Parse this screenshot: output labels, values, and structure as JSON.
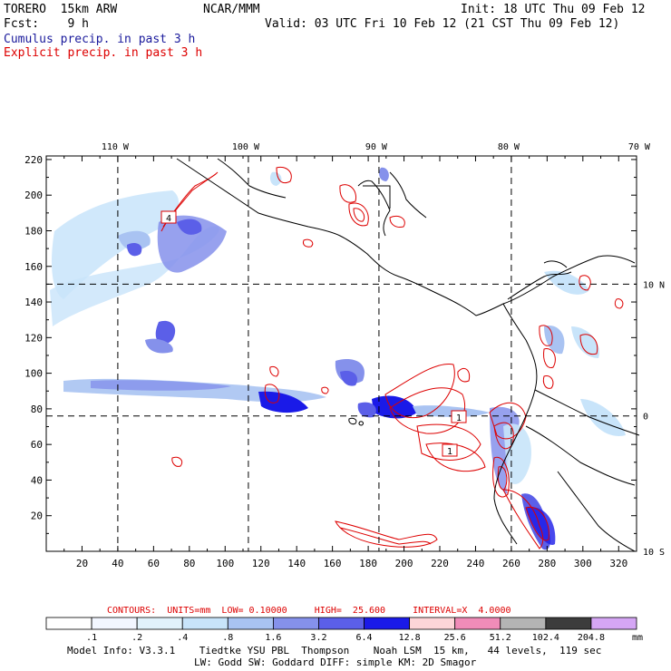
{
  "header": {
    "model": "TORERO  15km ARW",
    "org": "NCAR/MMM",
    "init": "Init: 18 UTC Thu 09 Feb 12",
    "fcst": "Fcst:    9 h",
    "valid": "Valid: 03 UTC Fri 10 Feb 12 (21 CST Thu 09 Feb 12)",
    "line1": "Cumulus precip. in past 3 h",
    "line2": "Explicit precip. in past 3 h",
    "line1_color": "#1a1a9c",
    "line2_color": "#dd0000"
  },
  "chart_data": {
    "type": "heatmap",
    "title": "Cumulus precip. in past 3 h (shaded) / Explicit precip. in past 3 h (red contours)",
    "x_ticks": [
      20,
      40,
      60,
      80,
      100,
      120,
      140,
      160,
      180,
      200,
      220,
      240,
      260,
      280,
      300,
      320
    ],
    "y_ticks": [
      20,
      40,
      60,
      80,
      100,
      120,
      140,
      160,
      180,
      200,
      220
    ],
    "xlim": [
      0,
      330
    ],
    "ylim": [
      0,
      222
    ],
    "lon_labels": [
      {
        "label": "110 W",
        "x": 40
      },
      {
        "label": "100 W",
        "x": 113
      },
      {
        "label": "90 W",
        "x": 186
      },
      {
        "label": "80 W",
        "x": 260
      },
      {
        "label": "70 W",
        "x": 333
      }
    ],
    "lat_labels": [
      {
        "label": "10 N",
        "y": 150
      },
      {
        "label": "0",
        "y": 76
      },
      {
        "label": "10 S",
        "y": 0
      }
    ],
    "contour_labels": [
      "4",
      "1",
      "1"
    ],
    "contours": {
      "units": "CONTOURS:  UNITS=mm  LOW= 0.10000     HIGH=  25.600     INTERVAL=X  4.0000"
    },
    "colorbar": {
      "units": "mm",
      "ticks": [
        ".1",
        ".2",
        ".4",
        ".8",
        "1.6",
        "3.2",
        "6.4",
        "12.8",
        "25.6",
        "51.2",
        "102.4",
        "204.8"
      ],
      "colors": [
        "#ffffff",
        "#f2f6ff",
        "#e1f2fb",
        "#c8e4fa",
        "#a9c3f2",
        "#8591eb",
        "#5b5fe8",
        "#1a1ae8",
        "#fdd5d8",
        "#f08cb8",
        "#b4b4b4",
        "#3c3c3c",
        "#d5a6f5"
      ]
    }
  },
  "footer": {
    "line1": "Model Info: V3.3.1    Tiedtke YSU PBL  Thompson    Noah LSM  15 km,   44 levels,  119 sec",
    "line2": "LW: Godd SW: Goddard DIFF: simple KM: 2D Smagor"
  }
}
